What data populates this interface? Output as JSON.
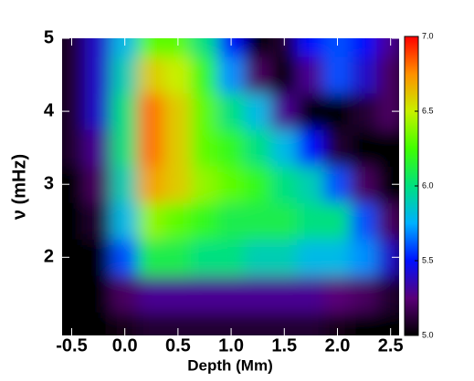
{
  "chart_data": {
    "type": "heatmap",
    "xlabel": "Depth (Mm)",
    "ylabel": "ν (mHz)",
    "x": [
      -0.5,
      -0.25,
      0,
      0.25,
      0.5,
      0.75,
      1.0,
      1.25,
      1.5,
      1.75,
      2.0,
      2.25,
      2.5
    ],
    "y": [
      1.0,
      1.5,
      2.0,
      2.5,
      3.0,
      3.5,
      4.0,
      4.5,
      5.0
    ],
    "values": [
      [
        5.0,
        5.0,
        5.05,
        5.1,
        5.1,
        5.1,
        5.1,
        5.1,
        5.1,
        5.1,
        5.05,
        5.0,
        5.0
      ],
      [
        5.0,
        5.0,
        5.2,
        5.3,
        5.3,
        5.3,
        5.3,
        5.3,
        5.3,
        5.3,
        5.25,
        5.2,
        5.1
      ],
      [
        5.0,
        5.0,
        5.6,
        6.1,
        6.1,
        6.0,
        6.0,
        5.9,
        5.9,
        5.8,
        5.8,
        5.7,
        5.4
      ],
      [
        5.0,
        5.1,
        5.8,
        6.4,
        6.3,
        6.2,
        6.1,
        6.1,
        6.1,
        6.0,
        6.0,
        5.6,
        5.2
      ],
      [
        5.0,
        5.2,
        5.9,
        6.7,
        6.6,
        6.4,
        6.3,
        6.2,
        6.0,
        5.9,
        5.6,
        5.2,
        5.0
      ],
      [
        5.1,
        5.3,
        6.0,
        6.8,
        6.6,
        6.3,
        6.2,
        6.0,
        5.8,
        5.5,
        5.1,
        5.0,
        5.0
      ],
      [
        5.1,
        5.4,
        6.0,
        6.8,
        6.6,
        6.3,
        6.0,
        5.8,
        5.3,
        5.0,
        5.0,
        5.1,
        5.2
      ],
      [
        5.1,
        5.4,
        5.9,
        6.6,
        6.5,
        6.2,
        5.7,
        5.2,
        5.0,
        5.3,
        5.6,
        5.4,
        5.2
      ],
      [
        5.1,
        5.4,
        5.8,
        6.3,
        6.3,
        6.0,
        5.5,
        5.0,
        5.1,
        5.5,
        5.6,
        5.5,
        5.3
      ]
    ],
    "xlim": [
      -0.59,
      2.58
    ],
    "ylim": [
      0.93,
      5.0
    ],
    "xticks": [
      -0.5,
      {
        "value": 0,
        "label": "0.0"
      },
      0.5,
      {
        "value": 1,
        "label": "1.0"
      },
      1.5,
      {
        "value": 2,
        "label": "2.0"
      },
      2.5
    ],
    "yticks": [
      2,
      3,
      4,
      5
    ],
    "clim": [
      5.0,
      7.0
    ],
    "cticks": [
      {
        "value": 5,
        "label": "5.0"
      },
      {
        "value": 5.5,
        "label": "5.5"
      },
      {
        "value": 6,
        "label": "6.0"
      },
      {
        "value": 6.5,
        "label": "6.5"
      },
      {
        "value": 7,
        "label": "7.0"
      }
    ],
    "colormap": [
      "#000000",
      "#5a0078",
      "#0010ff",
      "#00b0ff",
      "#00e080",
      "#40ff00",
      "#c8f000",
      "#ff9000",
      "#ff0000"
    ]
  }
}
